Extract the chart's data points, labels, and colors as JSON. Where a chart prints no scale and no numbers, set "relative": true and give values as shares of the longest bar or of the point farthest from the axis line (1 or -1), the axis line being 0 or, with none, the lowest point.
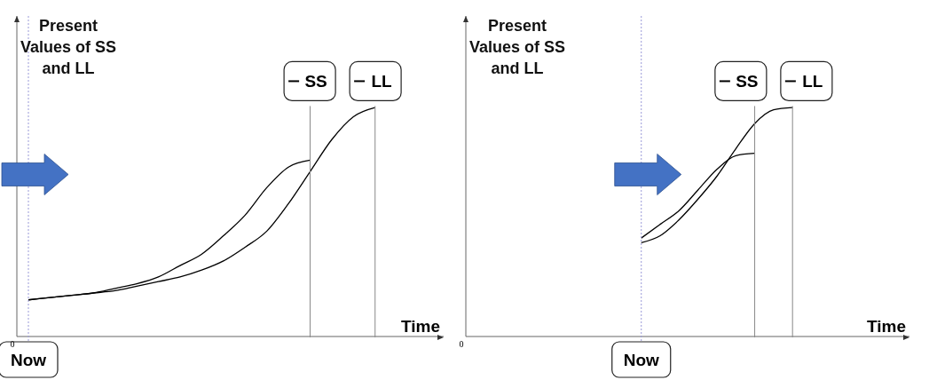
{
  "chart_data": [
    {
      "type": "line",
      "relative": true,
      "ylabel": "Present Values of SS and LL",
      "xlabel": "Time",
      "annotations": [
        "Now",
        "0"
      ],
      "legend": "top right",
      "marker": "none",
      "line_style": "solid",
      "categories": [
        null,
        null,
        null,
        null,
        null,
        null,
        null,
        null,
        null,
        null,
        null,
        null,
        null,
        null,
        null,
        null,
        null,
        null,
        null,
        null
      ],
      "series": [
        {
          "name": "SS",
          "color": "#000000",
          "values": [
            0.16,
            0.17,
            0.18,
            0.19,
            0.21,
            0.23,
            0.26,
            0.31,
            0.36,
            0.44,
            0.53,
            0.65,
            0.74,
            0.77,
            null,
            null,
            null,
            null,
            null,
            null
          ]
        },
        {
          "name": "LL",
          "color": "#000000",
          "values": [
            0.16,
            0.17,
            0.18,
            0.19,
            0.2,
            0.22,
            0.24,
            0.26,
            0.29,
            0.33,
            0.39,
            0.46,
            0.58,
            0.72,
            0.86,
            0.96,
            1.0,
            null,
            null,
            null
          ]
        }
      ]
    },
    {
      "type": "line",
      "relative": true,
      "ylabel": "Present Values of SS and LL",
      "xlabel": "Time",
      "annotations": [
        "Now",
        "0"
      ],
      "legend": "top right",
      "marker": "none",
      "line_style": "solid",
      "categories": [
        null,
        null,
        null,
        null,
        null,
        null,
        null,
        null,
        null,
        null,
        null,
        null,
        null,
        null,
        null,
        null,
        null,
        null,
        null,
        null,
        null,
        null,
        null,
        null
      ],
      "series": [
        {
          "name": "SS",
          "color": "#000000",
          "values": [
            null,
            null,
            null,
            null,
            null,
            null,
            null,
            null,
            null,
            0.43,
            0.49,
            0.55,
            0.64,
            0.73,
            0.79,
            0.8,
            null,
            null,
            null,
            null,
            null,
            null,
            null,
            null
          ]
        },
        {
          "name": "LL",
          "color": "#000000",
          "values": [
            null,
            null,
            null,
            null,
            null,
            null,
            null,
            null,
            null,
            0.41,
            0.44,
            0.51,
            0.6,
            0.7,
            0.82,
            0.93,
            0.99,
            1.0,
            null,
            null,
            null,
            null,
            null,
            null
          ]
        }
      ]
    }
  ]
}
